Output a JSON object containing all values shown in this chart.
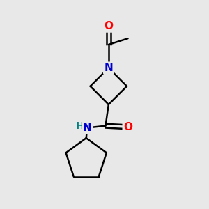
{
  "bg_color": "#e8e8e8",
  "bond_color": "#000000",
  "N_color": "#0000cc",
  "O_color": "#ff0000",
  "H_color": "#008080",
  "line_width": 1.8,
  "font_size_atoms": 11,
  "fig_bg": "#e8e8e8",
  "xlim": [
    0,
    10
  ],
  "ylim": [
    0,
    10
  ]
}
